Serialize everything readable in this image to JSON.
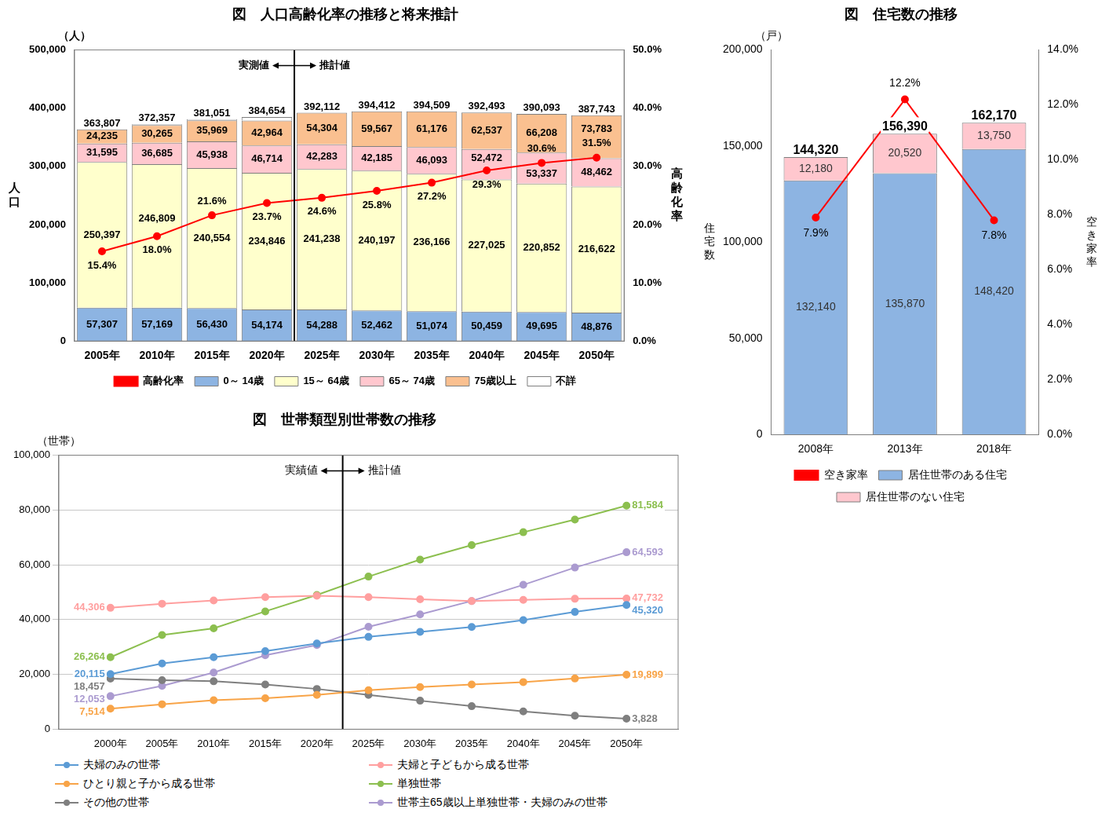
{
  "chart_data": [
    {
      "type": "bar",
      "title": "図　人口高齢化率の推移と将来推計",
      "y_unit": "（人）",
      "y_label": "人口",
      "y2_label": "高齢化率",
      "categories": [
        "2005年",
        "2010年",
        "2015年",
        "2020年",
        "2025年",
        "2030年",
        "2035年",
        "2040年",
        "2045年",
        "2050年"
      ],
      "series": [
        {
          "name": "0～ 14歳",
          "color": "#8db4e2",
          "values": [
            57307,
            57169,
            56430,
            54174,
            54288,
            52462,
            51074,
            50459,
            49695,
            48876
          ],
          "value_labels": [
            "57,307",
            "57,169",
            "56,430",
            "54,174",
            "54,288",
            "52,462",
            "51,074",
            "50,459",
            "49,695",
            "48,876"
          ]
        },
        {
          "name": "15～ 64歳",
          "color": "#ffffcc",
          "values": [
            250397,
            246809,
            240554,
            234846,
            241238,
            240197,
            236166,
            227025,
            220852,
            216622
          ],
          "value_labels": [
            "250,397",
            "246,809",
            "240,554",
            "234,846",
            "241,238",
            "240,197",
            "236,166",
            "227,025",
            "220,852",
            "216,622"
          ]
        },
        {
          "name": "65～ 74歳",
          "color": "#ffc7ce",
          "values": [
            31595,
            36685,
            45938,
            46714,
            42283,
            42185,
            46093,
            52472,
            53337,
            48462
          ],
          "value_labels": [
            "31,595",
            "36,685",
            "45,938",
            "46,714",
            "42,283",
            "42,185",
            "46,093",
            "52,472",
            "53,337",
            "48,462"
          ]
        },
        {
          "name": "75歳以上",
          "color": "#fac090",
          "values": [
            24235,
            30265,
            35969,
            42964,
            54304,
            59567,
            61176,
            62537,
            66208,
            73783
          ],
          "value_labels": [
            "24,235",
            "30,265",
            "35,969",
            "42,964",
            "54,304",
            "59,567",
            "61,176",
            "62,537",
            "66,208",
            "73,783"
          ]
        },
        {
          "name": "不詳",
          "color": "#ffffff",
          "data_labels": false,
          "values": [
            273,
            1429,
            2160,
            5956,
            0,
            0,
            0,
            0,
            0,
            0
          ]
        },
        {
          "name": "高齢化率",
          "type": "line",
          "axis": "y2",
          "color": "#ff0000",
          "marker": "circle",
          "values": [
            15.4,
            18.0,
            21.6,
            23.7,
            24.6,
            25.8,
            27.2,
            29.3,
            30.6,
            31.5
          ],
          "value_labels": [
            "15.4%",
            "18.0%",
            "21.6%",
            "23.7%",
            "24.6%",
            "25.8%",
            "27.2%",
            "29.3%",
            "30.6%",
            "31.5%"
          ]
        }
      ],
      "totals": [
        363807,
        372357,
        381051,
        384654,
        392112,
        394412,
        394509,
        392493,
        390093,
        387743
      ],
      "total_labels": [
        "363,807",
        "372,357",
        "381,051",
        "384,654",
        "392,112",
        "394,412",
        "394,509",
        "392,493",
        "390,093",
        "387,743"
      ],
      "annotations": [
        {
          "text": "実測値",
          "x": "2020年"
        },
        {
          "text": "推計値",
          "x": "2025年"
        }
      ],
      "stacked": true,
      "data_labels": true,
      "grid": false,
      "legend": "bottom",
      "ylim": [
        0,
        500000
      ],
      "yticks": [
        0,
        {
          "value": 100000,
          "label": "100,000"
        },
        {
          "value": 200000,
          "label": "200,000"
        },
        {
          "value": 300000,
          "label": "300,000"
        },
        {
          "value": 400000,
          "label": "400,000"
        },
        {
          "value": 500000,
          "label": "500,000"
        }
      ],
      "y2lim": [
        0,
        50
      ],
      "y2ticks": [
        {
          "value": 0,
          "label": "0.0%"
        },
        {
          "value": 10,
          "label": "10.0%"
        },
        {
          "value": 20,
          "label": "20.0%"
        },
        {
          "value": 30,
          "label": "30.0%"
        },
        {
          "value": 40,
          "label": "40.0%"
        },
        {
          "value": 50,
          "label": "50.0%"
        }
      ]
    },
    {
      "type": "bar",
      "title": "図　住宅数の推移",
      "y_unit": "（戸）",
      "y_label": "住宅数",
      "y2_label": "空き家率",
      "categories": [
        "2008年",
        "2013年",
        "2018年"
      ],
      "series": [
        {
          "name": "居住世帯のある住宅",
          "color": "#8db4e2",
          "values": [
            132140,
            135870,
            148420
          ],
          "value_labels": [
            "132,140",
            "135,870",
            "148,420"
          ]
        },
        {
          "name": "居住世帯のない住宅",
          "color": "#ffc7ce",
          "values": [
            12180,
            20520,
            13750
          ],
          "value_labels": [
            "12,180",
            "20,520",
            "13,750"
          ]
        },
        {
          "name": "空き家率",
          "type": "line",
          "axis": "y2",
          "color": "#ff0000",
          "marker": "circle",
          "values": [
            7.9,
            12.2,
            7.8
          ],
          "value_labels": [
            "7.9%",
            "12.2%",
            "7.8%"
          ]
        }
      ],
      "totals": [
        144320,
        156390,
        162170
      ],
      "total_labels": [
        "144,320",
        "156,390",
        "162,170"
      ],
      "stacked": true,
      "data_labels": true,
      "grid": false,
      "legend": "bottom",
      "ylim": [
        0,
        200000
      ],
      "yticks": [
        0,
        {
          "value": 50000,
          "label": "50,000"
        },
        {
          "value": 100000,
          "label": "100,000"
        },
        {
          "value": 150000,
          "label": "150,000"
        },
        {
          "value": 200000,
          "label": "200,000"
        }
      ],
      "y2lim": [
        0,
        14
      ],
      "y2ticks": [
        {
          "value": 0,
          "label": "0.0%"
        },
        {
          "value": 2,
          "label": "2.0%"
        },
        {
          "value": 4,
          "label": "4.0%"
        },
        {
          "value": 6,
          "label": "6.0%"
        },
        {
          "value": 8,
          "label": "8.0%"
        },
        {
          "value": 10,
          "label": "10.0%"
        },
        {
          "value": 12,
          "label": "12.0%"
        },
        {
          "value": 14,
          "label": "14.0%"
        }
      ]
    },
    {
      "type": "line",
      "title": "図　世帯類型別世帯数の推移",
      "y_unit": "（世帯）",
      "x": [
        2000,
        2005,
        2010,
        2015,
        2020,
        2025,
        2030,
        2035,
        2040,
        2045,
        2050
      ],
      "series": [
        {
          "name": "夫婦のみの世帯",
          "color": "#5b9bd5",
          "values": [
            20115,
            24000,
            26300,
            28500,
            31300,
            33700,
            35500,
            37300,
            39800,
            42800,
            45320
          ],
          "value_labels": [
            "20,115",
            null,
            null,
            null,
            null,
            null,
            null,
            null,
            null,
            null,
            "45,320"
          ]
        },
        {
          "name": "夫婦と子どもから成る世帯",
          "color": "#ff9f9f",
          "values": [
            44306,
            45800,
            47000,
            48200,
            48700,
            48200,
            47400,
            46800,
            47200,
            47600,
            47732
          ],
          "value_labels": [
            "44,306",
            null,
            null,
            null,
            null,
            null,
            null,
            null,
            null,
            null,
            "47,732"
          ]
        },
        {
          "name": "ひとり親と子から成る世帯",
          "color": "#f8a448",
          "values": [
            7514,
            9100,
            10600,
            11300,
            12500,
            14200,
            15400,
            16300,
            17200,
            18500,
            19899
          ],
          "value_labels": [
            "7,514",
            null,
            null,
            null,
            null,
            null,
            null,
            null,
            null,
            null,
            "19,899"
          ]
        },
        {
          "name": "単独世帯",
          "color": "#8cbf4f",
          "values": [
            26264,
            34400,
            36800,
            43000,
            49000,
            55700,
            61900,
            67200,
            71900,
            76500,
            81584
          ],
          "value_labels": [
            "26,264",
            null,
            null,
            null,
            null,
            null,
            null,
            null,
            null,
            null,
            "81,584"
          ]
        },
        {
          "name": "その他の世帯",
          "color": "#7f7f7f",
          "values": [
            18457,
            17900,
            17500,
            16300,
            14700,
            12500,
            10400,
            8400,
            6500,
            4900,
            3828
          ],
          "value_labels": [
            "18,457",
            null,
            null,
            null,
            null,
            null,
            null,
            null,
            null,
            null,
            "3,828"
          ]
        },
        {
          "name": "世帯主65歳以上単独世帯・夫婦のみの世帯",
          "color": "#ab9bd0",
          "values": [
            12053,
            15800,
            20700,
            27000,
            30700,
            37400,
            41900,
            46800,
            52700,
            59000,
            64593
          ],
          "value_labels": [
            "12,053",
            null,
            null,
            null,
            null,
            null,
            null,
            null,
            null,
            null,
            "64,593"
          ]
        }
      ],
      "annotations": [
        {
          "text": "実績値",
          "x": 2020
        },
        {
          "text": "推計値",
          "x": 2025
        }
      ],
      "marker": "circle",
      "data_labels": true,
      "grid": true,
      "legend": "bottom",
      "xlim": [
        1995,
        2055
      ],
      "xticks": [
        {
          "value": 2000,
          "label": "2000年"
        },
        {
          "value": 2005,
          "label": "2005年"
        },
        {
          "value": 2010,
          "label": "2010年"
        },
        {
          "value": 2015,
          "label": "2015年"
        },
        {
          "value": 2020,
          "label": "2020年"
        },
        {
          "value": 2025,
          "label": "2025年"
        },
        {
          "value": 2030,
          "label": "2030年"
        },
        {
          "value": 2035,
          "label": "2035年"
        },
        {
          "value": 2040,
          "label": "2040年"
        },
        {
          "value": 2045,
          "label": "2045年"
        },
        {
          "value": 2050,
          "label": "2050年"
        }
      ],
      "ylim": [
        0,
        100000
      ],
      "yticks": [
        0,
        {
          "value": 20000,
          "label": "20,000"
        },
        {
          "value": 40000,
          "label": "40,000"
        },
        {
          "value": 60000,
          "label": "60,000"
        },
        {
          "value": 80000,
          "label": "80,000"
        },
        {
          "value": 100000,
          "label": "100,000"
        }
      ]
    }
  ]
}
